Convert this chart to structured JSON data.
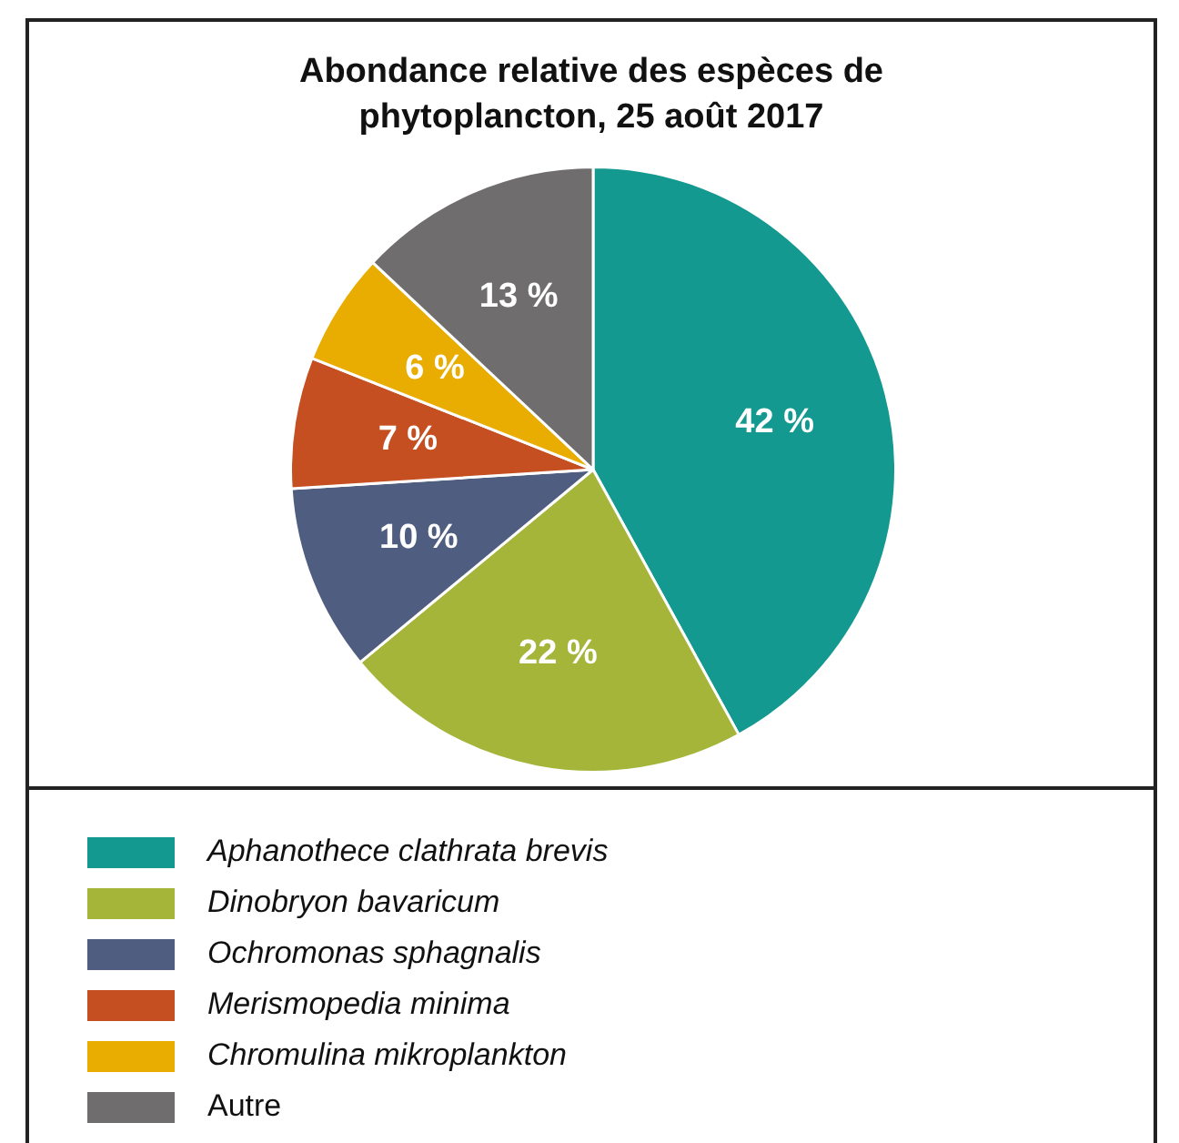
{
  "chart_data": {
    "type": "pie",
    "title": "Abondance relative des espèces de phytoplancton, 25 août 2017",
    "categories": [
      "Aphanothece clathrata brevis",
      "Dinobryon bavaricum",
      "Ochromonas sphagnalis",
      "Merismopedia minima",
      "Chromulina mikroplankton",
      "Autre"
    ],
    "values": [
      42,
      22,
      10,
      7,
      6,
      13
    ],
    "colors": [
      "#13998f",
      "#a5b53a",
      "#4f5e80",
      "#c54f21",
      "#e8ad00",
      "#6f6d6d"
    ],
    "value_labels": [
      "42 %",
      "22 %",
      "10 %",
      "7 %",
      "6 %",
      "13 %"
    ],
    "legend": "bottom"
  }
}
